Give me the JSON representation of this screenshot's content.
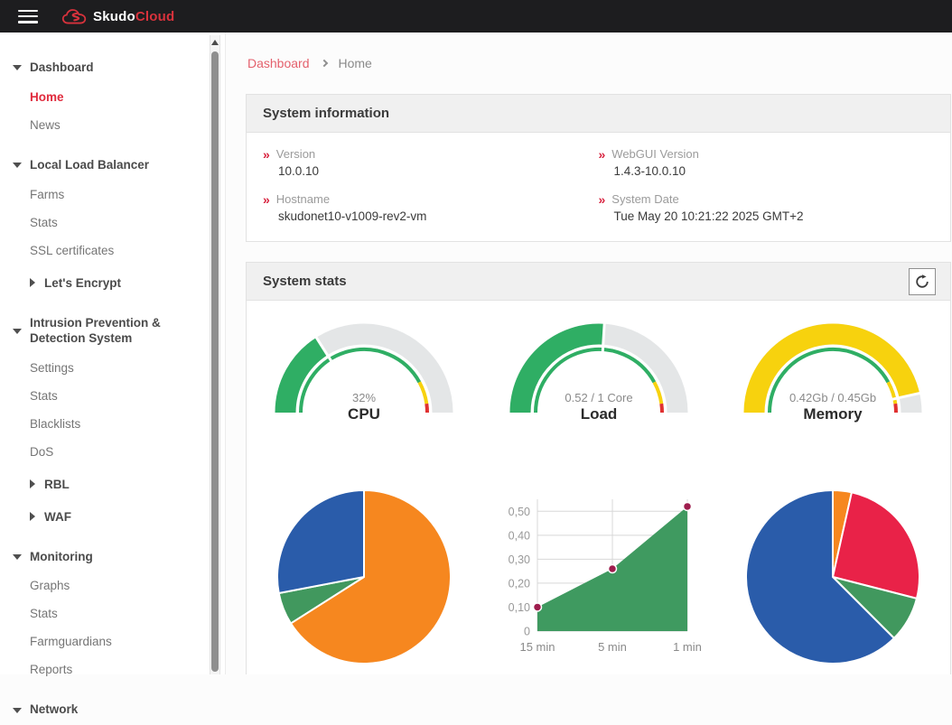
{
  "topbar": {
    "brand_primary": "Skudo",
    "brand_secondary": "Cloud"
  },
  "breadcrumb": {
    "link": "Dashboard",
    "current": "Home"
  },
  "sidebar": {
    "sections": [
      {
        "label": "Dashboard",
        "items": [
          {
            "label": "Home",
            "active": true
          },
          {
            "label": "News"
          }
        ]
      },
      {
        "label": "Local Load Balancer",
        "items": [
          {
            "label": "Farms"
          },
          {
            "label": "Stats"
          },
          {
            "label": "SSL certificates"
          },
          {
            "label": "Let's Encrypt",
            "group": true
          }
        ]
      },
      {
        "label": "Intrusion Prevention & Detection System",
        "items": [
          {
            "label": "Settings"
          },
          {
            "label": "Stats"
          },
          {
            "label": "Blacklists"
          },
          {
            "label": "DoS"
          },
          {
            "label": "RBL",
            "group": true
          },
          {
            "label": "WAF",
            "group": true
          }
        ]
      },
      {
        "label": "Monitoring",
        "items": [
          {
            "label": "Graphs"
          },
          {
            "label": "Stats"
          },
          {
            "label": "Farmguardians"
          },
          {
            "label": "Reports"
          }
        ]
      },
      {
        "label": "Network",
        "items": []
      }
    ]
  },
  "info_panel": {
    "title": "System information",
    "fields": [
      {
        "label": "Version",
        "value": "10.0.10"
      },
      {
        "label": "WebGUI Version",
        "value": "1.4.3-10.0.10"
      },
      {
        "label": "Hostname",
        "value": "skudonet10-v1009-rev2-vm"
      },
      {
        "label": "System Date",
        "value": "Tue May 20 10:21:22 2025 GMT+2"
      }
    ]
  },
  "stats_panel": {
    "title": "System stats"
  },
  "colors": {
    "topbar_bg": "#1d1d1f",
    "brand_red": "#d8323c",
    "active_red": "#e02a3c",
    "breadcrumb_link": "#e4606c",
    "marker_red": "#d8233f",
    "gauge_track": "#e4e6e7",
    "green": "#2fae64",
    "yellow": "#f7d20e",
    "scale_red": "#e03131",
    "pie_orange": "#f6871f",
    "pie_blue": "#2a5caa",
    "pie_green": "#41985e",
    "pie_red": "#e92248",
    "area_fill": "#3f9a60",
    "point": "#9e1d4d",
    "grid": "#d8d8d8"
  },
  "chart_data": [
    {
      "type": "gauge",
      "title": "CPU",
      "value_label": "32%",
      "percent": 32,
      "color": "#2fae64",
      "scale": [
        {
          "to": 84,
          "color": "#2fae64"
        },
        {
          "to": 95.5,
          "color": "#f7d20e"
        },
        {
          "to": 100,
          "color": "#e03131"
        }
      ]
    },
    {
      "type": "gauge",
      "title": "Load",
      "value_label": "0.52 / 1 Core",
      "percent": 52,
      "color": "#2fae64",
      "scale": [
        {
          "to": 84,
          "color": "#2fae64"
        },
        {
          "to": 95.5,
          "color": "#f7d20e"
        },
        {
          "to": 100,
          "color": "#e03131"
        }
      ]
    },
    {
      "type": "gauge",
      "title": "Memory",
      "value_label": "0.42Gb / 0.45Gb",
      "percent": 93,
      "color": "#f7d20e",
      "scale": [
        {
          "to": 84,
          "color": "#2fae64"
        },
        {
          "to": 95.5,
          "color": "#f7d20e"
        },
        {
          "to": 100,
          "color": "#e03131"
        }
      ]
    },
    {
      "type": "pie",
      "name": "pie-chart-left",
      "start": "top",
      "direction": "clockwise",
      "slices": [
        {
          "percent": 66,
          "color": "#f6871f"
        },
        {
          "percent": 6,
          "color": "#41985e"
        },
        {
          "percent": 28,
          "color": "#2a5caa"
        }
      ]
    },
    {
      "type": "area",
      "name": "load-history-chart",
      "x_labels": [
        "15 min",
        "5 min",
        "1 min"
      ],
      "values": [
        0.1,
        0.26,
        0.52
      ],
      "yticks": [
        {
          "v": 0,
          "label": "0"
        },
        {
          "v": 0.1,
          "label": "0,10"
        },
        {
          "v": 0.2,
          "label": "0,20"
        },
        {
          "v": 0.3,
          "label": "0,30"
        },
        {
          "v": 0.4,
          "label": "0,40"
        },
        {
          "v": 0.5,
          "label": "0,50"
        }
      ],
      "ymax": 0.55,
      "fill": "#3f9a60",
      "point_color": "#9e1d4d",
      "grid": true,
      "legend": false
    },
    {
      "type": "pie",
      "name": "pie-chart-right",
      "start": "top",
      "direction": "clockwise",
      "slices": [
        {
          "percent": 3.5,
          "color": "#f6871f"
        },
        {
          "percent": 25.5,
          "color": "#e92248"
        },
        {
          "percent": 8.5,
          "color": "#41985e"
        },
        {
          "percent": 62.5,
          "color": "#2a5caa"
        }
      ]
    }
  ]
}
